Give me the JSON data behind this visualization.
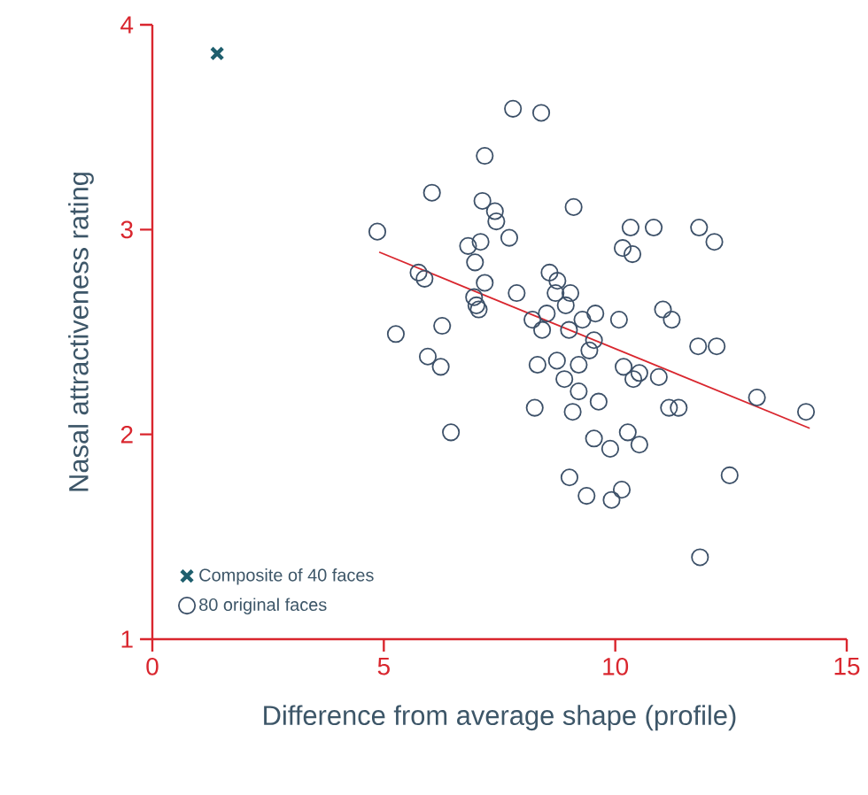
{
  "chart_data": {
    "type": "scatter",
    "xlabel": "Difference from average shape (profile)",
    "ylabel": "Nasal attractiveness rating",
    "xlim": [
      0,
      15
    ],
    "ylim": [
      1,
      4
    ],
    "xticks": [
      0,
      5,
      10,
      15
    ],
    "yticks": [
      1,
      2,
      3,
      4
    ],
    "legend": "bottom left",
    "series": [
      {
        "name": "Composite of 40 faces",
        "marker": "cross",
        "color": "#1f5f6e",
        "x": [
          1.4
        ],
        "values": [
          3.86
        ]
      },
      {
        "name": "80 original faces",
        "marker": "circle",
        "color": "#3c5068",
        "x": [
          7.79,
          8.4,
          7.18,
          6.04,
          7.13,
          7.4,
          7.43,
          7.71,
          4.86,
          6.82,
          7.09,
          6.97,
          5.75,
          5.88,
          7.18,
          6.95,
          7.0,
          7.05,
          7.87,
          8.58,
          8.75,
          8.71,
          8.21,
          8.42,
          8.52,
          6.26,
          5.26,
          5.95,
          6.23,
          8.32,
          8.74,
          8.26,
          6.45,
          9.1,
          9.03,
          8.93,
          9.0,
          9.29,
          9.57,
          8.9,
          9.21,
          9.21,
          9.44,
          9.54,
          9.08,
          9.64,
          9.54,
          9.01,
          9.38,
          10.33,
          10.83,
          11.81,
          12.14,
          10.16,
          10.37,
          11.03,
          11.22,
          10.08,
          11.79,
          12.19,
          10.18,
          10.52,
          10.39,
          10.94,
          9.89,
          10.27,
          10.52,
          11.16,
          11.37,
          13.06,
          14.12,
          12.47,
          9.92,
          10.14,
          11.83
        ],
        "values": [
          3.59,
          3.57,
          3.36,
          3.18,
          3.14,
          3.09,
          3.04,
          2.96,
          2.99,
          2.92,
          2.94,
          2.84,
          2.79,
          2.76,
          2.74,
          2.67,
          2.63,
          2.61,
          2.69,
          2.79,
          2.75,
          2.69,
          2.56,
          2.51,
          2.59,
          2.53,
          2.49,
          2.38,
          2.33,
          2.34,
          2.36,
          2.13,
          2.01,
          3.11,
          2.69,
          2.63,
          2.51,
          2.56,
          2.59,
          2.27,
          2.34,
          2.21,
          2.41,
          2.46,
          2.11,
          2.16,
          1.98,
          1.79,
          1.7,
          3.01,
          3.01,
          3.01,
          2.94,
          2.91,
          2.88,
          2.61,
          2.56,
          2.56,
          2.43,
          2.43,
          2.33,
          2.3,
          2.27,
          2.28,
          1.93,
          2.01,
          1.95,
          2.13,
          2.13,
          2.18,
          2.11,
          1.8,
          1.68,
          1.73,
          1.4
        ]
      },
      {
        "type": "line",
        "color": "#d9262e",
        "x": [
          4.9,
          14.2
        ],
        "values": [
          2.89,
          2.03
        ]
      }
    ]
  }
}
